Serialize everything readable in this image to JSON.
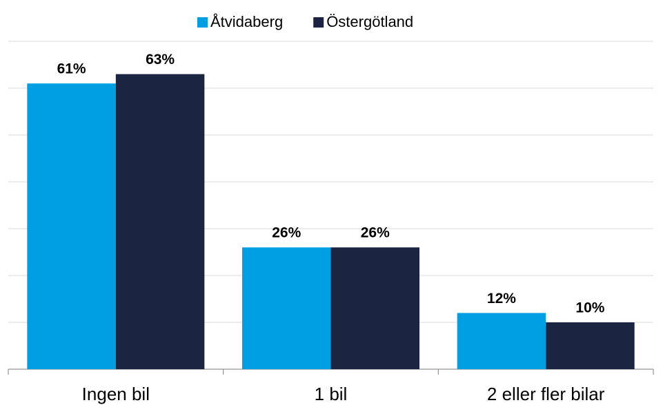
{
  "chart_data": {
    "type": "bar",
    "categories": [
      "Ingen bil",
      "1 bil",
      "2 eller fler bilar"
    ],
    "series": [
      {
        "name": "Åtvidaberg",
        "color": "#009fe3",
        "values": [
          61,
          26,
          12
        ],
        "value_labels": [
          "61%",
          "26%",
          "12%"
        ]
      },
      {
        "name": "Östergötland",
        "color": "#1b2541",
        "values": [
          63,
          26,
          10
        ],
        "value_labels": [
          "63%",
          "26%",
          "10%"
        ]
      }
    ],
    "ylim": [
      0,
      70
    ],
    "yticks": [
      0,
      10,
      20,
      30,
      40,
      50,
      60,
      70
    ],
    "grid": true,
    "legend": "top"
  }
}
